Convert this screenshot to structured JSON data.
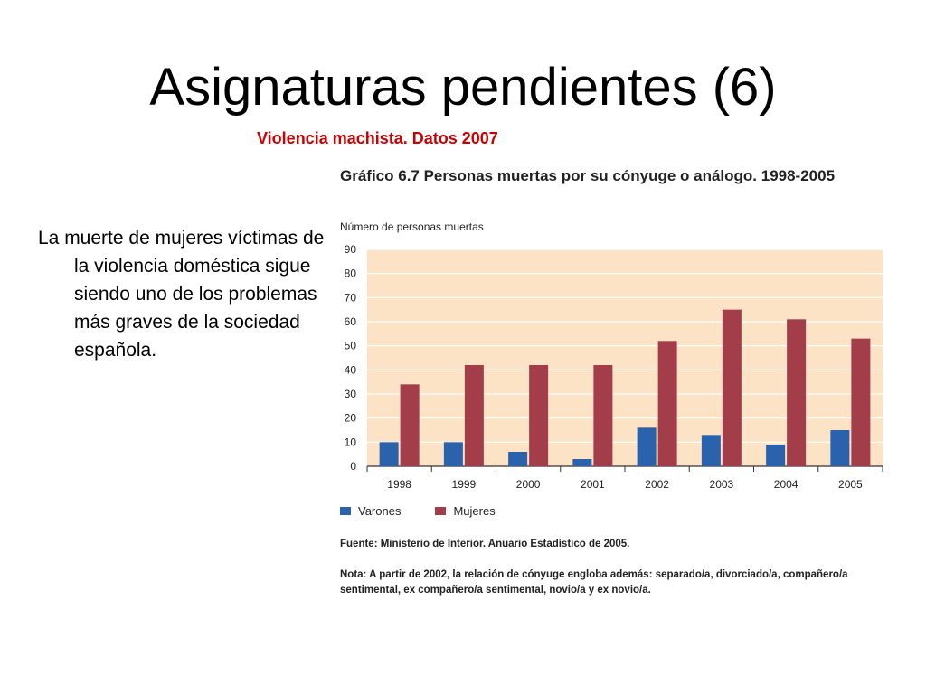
{
  "slide": {
    "title": "Asignaturas pendientes (6)",
    "subtitle": "Violencia machista. Datos 2007",
    "body_text": "La muerte de mujeres víctimas de la violencia doméstica sigue siendo uno de los problemas más graves de la sociedad española."
  },
  "chart_data": {
    "type": "bar",
    "title": "Gráfico 6.7 Personas muertas por su cónyuge o análogo. 1998-2005",
    "ylabel": "Número de personas muertas",
    "xlabel": "",
    "categories": [
      "1998",
      "1999",
      "2000",
      "2001",
      "2002",
      "2003",
      "2004",
      "2005"
    ],
    "series": [
      {
        "name": "Varones",
        "values": [
          10,
          10,
          6,
          3,
          16,
          13,
          9,
          15
        ],
        "color": "#2a62ac"
      },
      {
        "name": "Mujeres",
        "values": [
          34,
          42,
          42,
          42,
          52,
          65,
          61,
          53
        ],
        "color": "#a23d49"
      }
    ],
    "ylim": [
      0,
      90
    ],
    "yticks": [
      0,
      10,
      20,
      30,
      40,
      50,
      60,
      70,
      80,
      90
    ],
    "grid": true,
    "plot_background": "#fce3c6",
    "legend_position": "bottom-left",
    "source": "Fuente: Ministerio de Interior. Anuario Estadístico de 2005.",
    "note": "Nota: A partir de 2002, la relación de cónyuge engloba además: separado/a, divorciado/a, compañero/a sentimental, ex compañero/a sentimental, novio/a y ex novio/a."
  }
}
